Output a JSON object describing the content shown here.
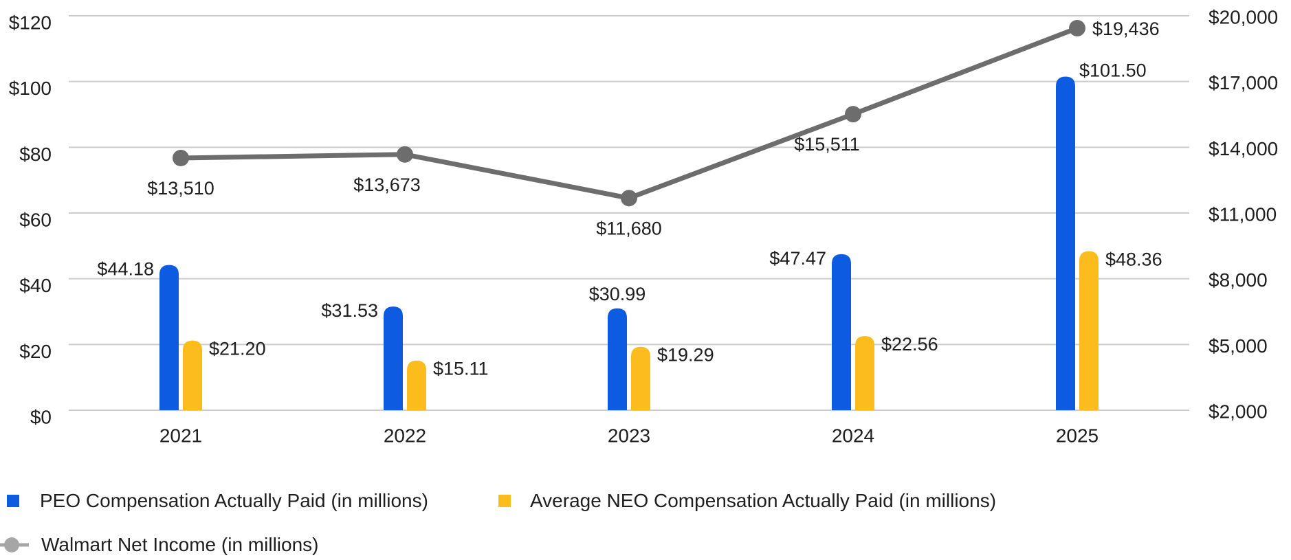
{
  "chart_data": {
    "type": "combo-bar-line",
    "categories": [
      "2021",
      "2022",
      "2023",
      "2024",
      "2025"
    ],
    "series": [
      {
        "name": "PEO Compensation Actually Paid (in millions)",
        "type": "bar",
        "axis": "left",
        "color": "#0d5be1",
        "values": [
          44.18,
          31.53,
          30.99,
          47.47,
          101.5
        ],
        "point_labels": [
          "$44.18",
          "$31.53",
          "$30.99",
          "$47.47",
          "$101.50"
        ]
      },
      {
        "name": "Average NEO Compensation Actually Paid (in millions)",
        "type": "bar",
        "axis": "left",
        "color": "#fcbc1d",
        "values": [
          21.2,
          15.11,
          19.29,
          22.56,
          48.36
        ],
        "point_labels": [
          "$21.20",
          "$15.11",
          "$19.29",
          "$22.56",
          "$48.36"
        ]
      },
      {
        "name": "Walmart Net Income (in millions)",
        "type": "line",
        "axis": "right",
        "color": "#6d6d6d",
        "legend_color": "#a6a6a6",
        "values": [
          13510,
          13673,
          11680,
          15511,
          19436
        ],
        "point_labels": [
          "$13,510",
          "$13,673",
          "$11,680",
          "$15,511",
          "$19,436"
        ]
      }
    ],
    "left_axis": {
      "min": 0,
      "max": 120,
      "ticks": [
        "$0",
        "$20",
        "$40",
        "$60",
        "$80",
        "$100",
        "$120"
      ]
    },
    "right_axis": {
      "min": 2000,
      "max": 20000,
      "ticks": [
        "$2,000",
        "$5,000",
        "$8,000",
        "$11,000",
        "$14,000",
        "$17,000",
        "$20,000"
      ]
    },
    "grid": {
      "horizontal": true,
      "color": "#cccccc"
    },
    "text_color": "#1e1e1e",
    "background": "#ffffff",
    "legend_position": "bottom-left"
  }
}
